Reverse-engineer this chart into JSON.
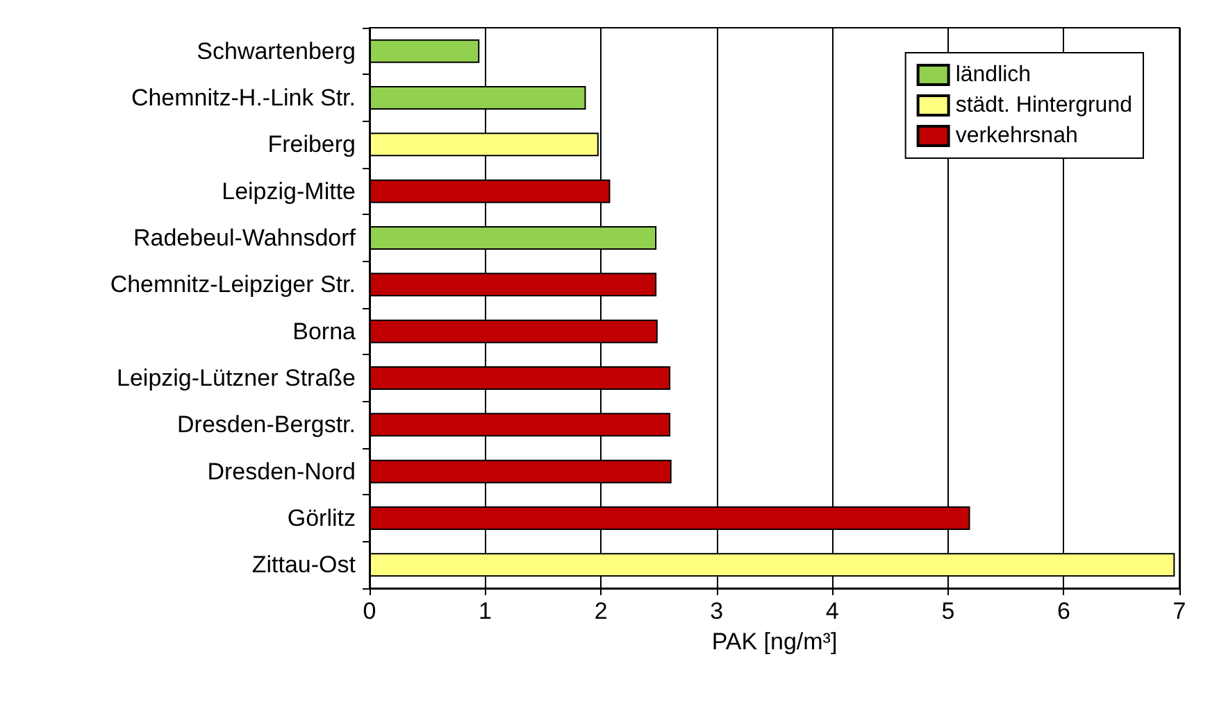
{
  "chart_data": {
    "type": "bar",
    "orientation": "horizontal",
    "stacked": true,
    "xlabel": "PAK [ng/m³]",
    "categories": [
      "Schwartenberg",
      "Chemnitz-H.-Link Str.",
      "Freiberg",
      "Leipzig-Mitte",
      "Radebeul-Wahnsdorf",
      "Chemnitz-Leipziger Str.",
      "Borna",
      "Leipzig-Lützner Straße",
      "Dresden-Bergstr.",
      "Dresden-Nord",
      "Görlitz",
      "Zittau-Ost"
    ],
    "series": [
      {
        "name": "ländlich",
        "color": "#92d050",
        "values": [
          0.95,
          1.87,
          null,
          null,
          2.48,
          null,
          null,
          null,
          null,
          null,
          null,
          null
        ]
      },
      {
        "name": "städt. Hintergrund",
        "color": "#ffff80",
        "values": [
          null,
          null,
          1.98,
          null,
          null,
          null,
          null,
          null,
          null,
          null,
          null,
          6.96
        ]
      },
      {
        "name": "verkehrsnah",
        "color": "#c00000",
        "values": [
          null,
          null,
          null,
          2.08,
          null,
          2.48,
          2.49,
          2.6,
          2.6,
          2.61,
          5.19,
          null
        ]
      }
    ],
    "xlim": [
      0,
      7
    ],
    "xticks": [
      0,
      1,
      2,
      3,
      4,
      5,
      6,
      7
    ],
    "grid": "x",
    "legend": "top right"
  }
}
